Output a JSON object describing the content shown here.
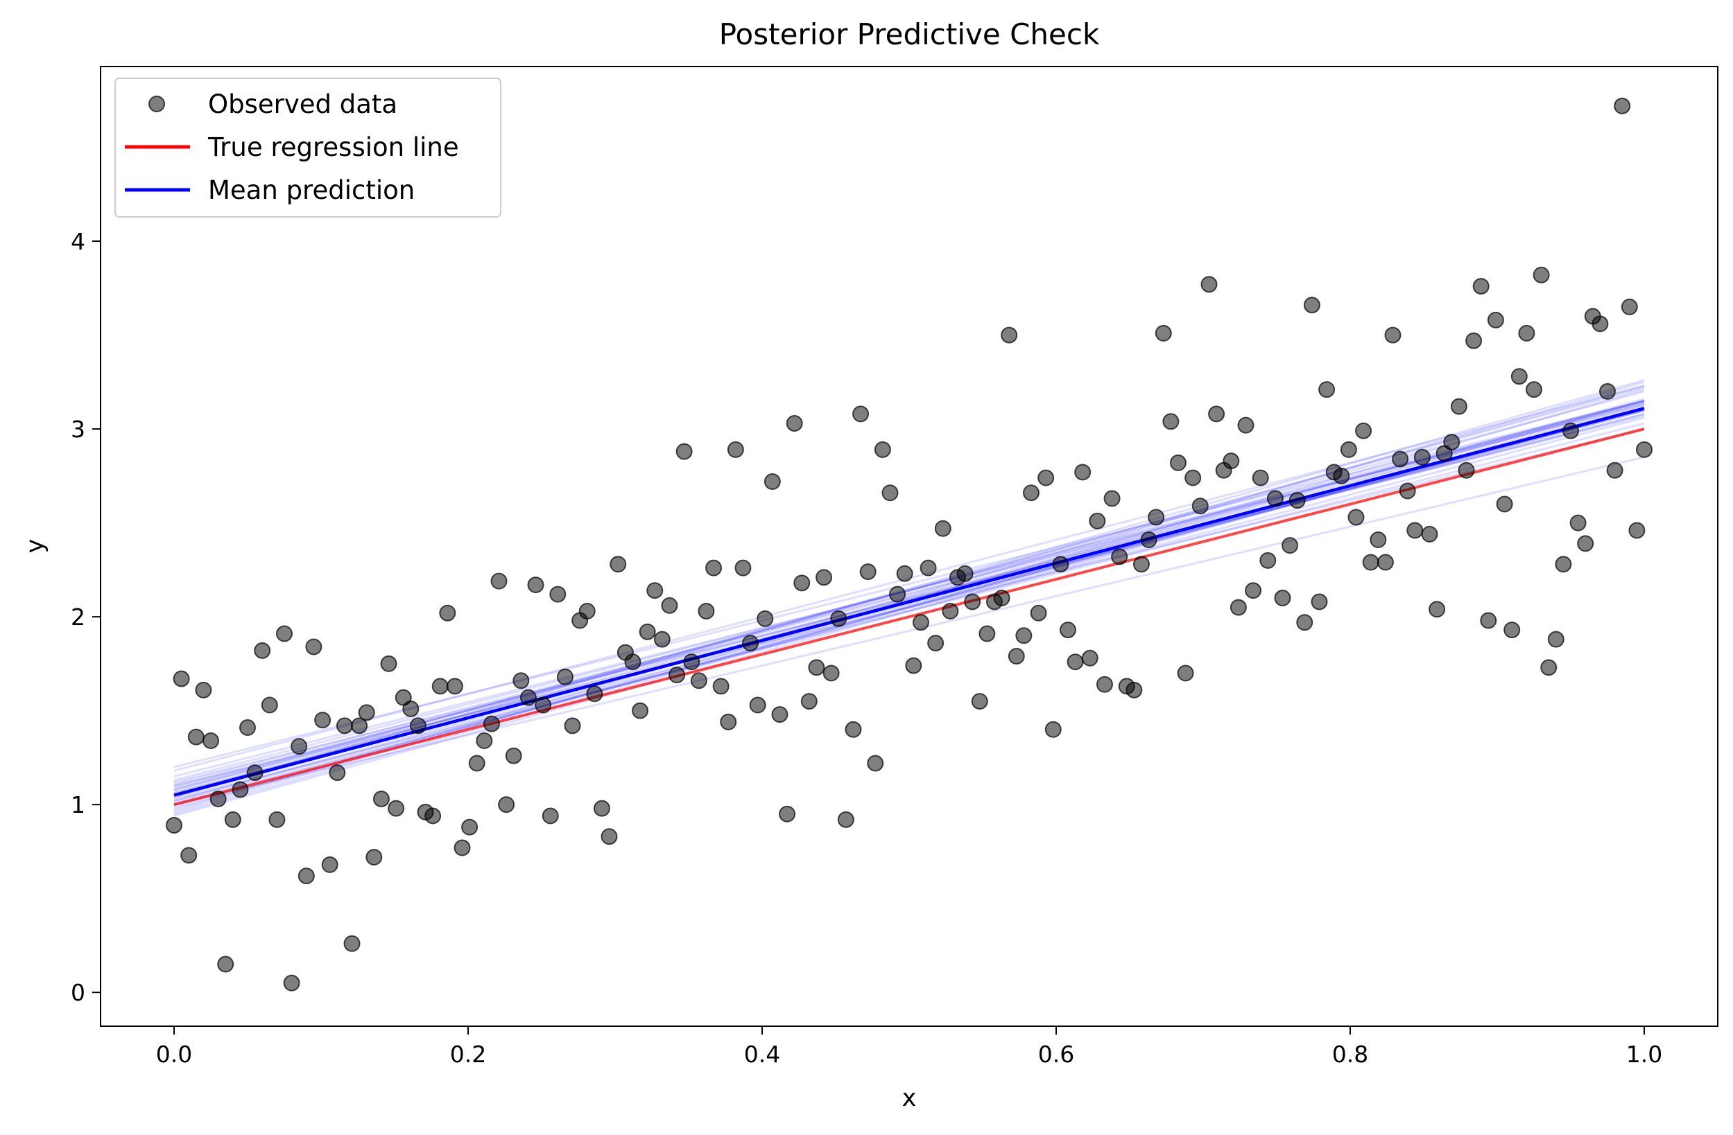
{
  "chart_data": {
    "type": "scatter",
    "title": "Posterior Predictive Check",
    "xlabel": "x",
    "ylabel": "y",
    "xlim": [
      -0.05,
      1.05
    ],
    "ylim": [
      -0.18,
      4.93
    ],
    "xticks": [
      0.0,
      0.2,
      0.4,
      0.6,
      0.8,
      1.0
    ],
    "xtick_labels": [
      "0.0",
      "0.2",
      "0.4",
      "0.6",
      "0.8",
      "1.0"
    ],
    "yticks": [
      0,
      1,
      2,
      3,
      4
    ],
    "ytick_labels": [
      "0",
      "1",
      "2",
      "3",
      "4"
    ],
    "grid": false,
    "legend_position": "upper-left",
    "legend": [
      {
        "label": "Observed data",
        "kind": "marker",
        "color": "#000000"
      },
      {
        "label": "True regression line",
        "kind": "line",
        "color": "#ff0000"
      },
      {
        "label": "Mean prediction",
        "kind": "line",
        "color": "#0000ff"
      }
    ],
    "colors": {
      "observed": "#000000",
      "true_line": "#ff0000",
      "mean_line": "#0000ff",
      "posterior_lines": "#0000ff"
    },
    "true_line": {
      "intercept": 1.0,
      "slope": 2.0
    },
    "mean_prediction": {
      "intercept": 1.05,
      "slope": 2.06
    },
    "posterior_lines": [
      [
        1.0,
        2.1
      ],
      [
        1.05,
        2.05
      ],
      [
        1.1,
        2.0
      ],
      [
        0.95,
        2.2
      ],
      [
        1.08,
        2.12
      ],
      [
        1.02,
        2.08
      ],
      [
        1.12,
        1.95
      ],
      [
        0.98,
        2.15
      ],
      [
        1.06,
        2.02
      ],
      [
        1.04,
        2.1
      ],
      [
        1.15,
        1.98
      ],
      [
        0.96,
        2.25
      ],
      [
        1.09,
        2.06
      ],
      [
        1.03,
        2.0
      ],
      [
        1.07,
        2.15
      ],
      [
        1.01,
        2.05
      ],
      [
        1.13,
        2.02
      ],
      [
        0.99,
        2.12
      ],
      [
        1.05,
        2.18
      ],
      [
        1.1,
        1.9
      ],
      [
        1.2,
        1.95
      ],
      [
        0.97,
        2.28
      ],
      [
        1.04,
        2.22
      ],
      [
        1.0,
        1.85
      ],
      [
        1.18,
        2.05
      ],
      [
        1.06,
        2.09
      ],
      [
        1.02,
        2.14
      ],
      [
        1.11,
        2.03
      ],
      [
        0.94,
        2.18
      ],
      [
        1.08,
        2.0
      ]
    ],
    "observed": [
      [
        0.0,
        0.89
      ],
      [
        0.005,
        1.67
      ],
      [
        0.01,
        0.73
      ],
      [
        0.015,
        1.36
      ],
      [
        0.02,
        1.61
      ],
      [
        0.025,
        1.34
      ],
      [
        0.03,
        1.03
      ],
      [
        0.035,
        0.15
      ],
      [
        0.04,
        0.92
      ],
      [
        0.045,
        1.08
      ],
      [
        0.05,
        1.41
      ],
      [
        0.055,
        1.17
      ],
      [
        0.06,
        1.82
      ],
      [
        0.065,
        1.53
      ],
      [
        0.07,
        0.92
      ],
      [
        0.075,
        1.91
      ],
      [
        0.08,
        0.05
      ],
      [
        0.085,
        1.31
      ],
      [
        0.09,
        0.62
      ],
      [
        0.095,
        1.84
      ],
      [
        0.101,
        1.45
      ],
      [
        0.106,
        0.68
      ],
      [
        0.111,
        1.17
      ],
      [
        0.116,
        1.42
      ],
      [
        0.121,
        0.26
      ],
      [
        0.126,
        1.42
      ],
      [
        0.131,
        1.49
      ],
      [
        0.136,
        0.72
      ],
      [
        0.141,
        1.03
      ],
      [
        0.146,
        1.75
      ],
      [
        0.151,
        0.98
      ],
      [
        0.156,
        1.57
      ],
      [
        0.161,
        1.51
      ],
      [
        0.166,
        1.42
      ],
      [
        0.171,
        0.96
      ],
      [
        0.176,
        0.94
      ],
      [
        0.181,
        1.63
      ],
      [
        0.186,
        2.02
      ],
      [
        0.191,
        1.63
      ],
      [
        0.196,
        0.77
      ],
      [
        0.201,
        0.88
      ],
      [
        0.206,
        1.22
      ],
      [
        0.211,
        1.34
      ],
      [
        0.216,
        1.43
      ],
      [
        0.221,
        2.19
      ],
      [
        0.226,
        1.0
      ],
      [
        0.231,
        1.26
      ],
      [
        0.236,
        1.66
      ],
      [
        0.241,
        1.57
      ],
      [
        0.246,
        2.17
      ],
      [
        0.251,
        1.53
      ],
      [
        0.256,
        0.94
      ],
      [
        0.261,
        2.12
      ],
      [
        0.266,
        1.68
      ],
      [
        0.271,
        1.42
      ],
      [
        0.276,
        1.98
      ],
      [
        0.281,
        2.03
      ],
      [
        0.286,
        1.59
      ],
      [
        0.291,
        0.98
      ],
      [
        0.296,
        0.83
      ],
      [
        0.302,
        2.28
      ],
      [
        0.307,
        1.81
      ],
      [
        0.312,
        1.76
      ],
      [
        0.317,
        1.5
      ],
      [
        0.322,
        1.92
      ],
      [
        0.327,
        2.14
      ],
      [
        0.332,
        1.88
      ],
      [
        0.337,
        2.06
      ],
      [
        0.342,
        1.69
      ],
      [
        0.347,
        2.88
      ],
      [
        0.352,
        1.76
      ],
      [
        0.357,
        1.66
      ],
      [
        0.362,
        2.03
      ],
      [
        0.367,
        2.26
      ],
      [
        0.372,
        1.63
      ],
      [
        0.377,
        1.44
      ],
      [
        0.382,
        2.89
      ],
      [
        0.387,
        2.26
      ],
      [
        0.392,
        1.86
      ],
      [
        0.397,
        1.53
      ],
      [
        0.402,
        1.99
      ],
      [
        0.407,
        2.72
      ],
      [
        0.412,
        1.48
      ],
      [
        0.417,
        0.95
      ],
      [
        0.422,
        3.03
      ],
      [
        0.427,
        2.18
      ],
      [
        0.432,
        1.55
      ],
      [
        0.437,
        1.73
      ],
      [
        0.442,
        2.21
      ],
      [
        0.447,
        1.7
      ],
      [
        0.452,
        1.99
      ],
      [
        0.457,
        0.92
      ],
      [
        0.462,
        1.4
      ],
      [
        0.467,
        3.08
      ],
      [
        0.472,
        2.24
      ],
      [
        0.477,
        1.22
      ],
      [
        0.482,
        2.89
      ],
      [
        0.487,
        2.66
      ],
      [
        0.492,
        2.12
      ],
      [
        0.497,
        2.23
      ],
      [
        0.503,
        1.74
      ],
      [
        0.508,
        1.97
      ],
      [
        0.513,
        2.26
      ],
      [
        0.518,
        1.86
      ],
      [
        0.523,
        2.47
      ],
      [
        0.528,
        2.03
      ],
      [
        0.533,
        2.21
      ],
      [
        0.538,
        2.23
      ],
      [
        0.543,
        2.08
      ],
      [
        0.548,
        1.55
      ],
      [
        0.553,
        1.91
      ],
      [
        0.558,
        2.08
      ],
      [
        0.563,
        2.1
      ],
      [
        0.568,
        3.5
      ],
      [
        0.573,
        1.79
      ],
      [
        0.578,
        1.9
      ],
      [
        0.583,
        2.66
      ],
      [
        0.588,
        2.02
      ],
      [
        0.593,
        2.74
      ],
      [
        0.598,
        1.4
      ],
      [
        0.603,
        2.28
      ],
      [
        0.608,
        1.93
      ],
      [
        0.613,
        1.76
      ],
      [
        0.618,
        2.77
      ],
      [
        0.623,
        1.78
      ],
      [
        0.628,
        2.51
      ],
      [
        0.633,
        1.64
      ],
      [
        0.638,
        2.63
      ],
      [
        0.643,
        2.32
      ],
      [
        0.648,
        1.63
      ],
      [
        0.653,
        1.61
      ],
      [
        0.658,
        2.28
      ],
      [
        0.663,
        2.41
      ],
      [
        0.668,
        2.53
      ],
      [
        0.673,
        3.51
      ],
      [
        0.678,
        3.04
      ],
      [
        0.683,
        2.82
      ],
      [
        0.688,
        1.7
      ],
      [
        0.693,
        2.74
      ],
      [
        0.698,
        2.59
      ],
      [
        0.704,
        3.77
      ],
      [
        0.709,
        3.08
      ],
      [
        0.714,
        2.78
      ],
      [
        0.719,
        2.83
      ],
      [
        0.724,
        2.05
      ],
      [
        0.729,
        3.02
      ],
      [
        0.734,
        2.14
      ],
      [
        0.739,
        2.74
      ],
      [
        0.744,
        2.3
      ],
      [
        0.749,
        2.63
      ],
      [
        0.754,
        2.1
      ],
      [
        0.759,
        2.38
      ],
      [
        0.764,
        2.62
      ],
      [
        0.769,
        1.97
      ],
      [
        0.774,
        3.66
      ],
      [
        0.779,
        2.08
      ],
      [
        0.784,
        3.21
      ],
      [
        0.789,
        2.77
      ],
      [
        0.794,
        2.75
      ],
      [
        0.799,
        2.89
      ],
      [
        0.804,
        2.53
      ],
      [
        0.809,
        2.99
      ],
      [
        0.814,
        2.29
      ],
      [
        0.819,
        2.41
      ],
      [
        0.824,
        2.29
      ],
      [
        0.829,
        3.5
      ],
      [
        0.834,
        2.84
      ],
      [
        0.839,
        2.67
      ],
      [
        0.844,
        2.46
      ],
      [
        0.849,
        2.85
      ],
      [
        0.854,
        2.44
      ],
      [
        0.859,
        2.04
      ],
      [
        0.864,
        2.87
      ],
      [
        0.869,
        2.93
      ],
      [
        0.874,
        3.12
      ],
      [
        0.879,
        2.78
      ],
      [
        0.884,
        3.47
      ],
      [
        0.889,
        3.76
      ],
      [
        0.894,
        1.98
      ],
      [
        0.899,
        3.58
      ],
      [
        0.905,
        2.6
      ],
      [
        0.91,
        1.93
      ],
      [
        0.915,
        3.28
      ],
      [
        0.92,
        3.51
      ],
      [
        0.925,
        3.21
      ],
      [
        0.93,
        3.82
      ],
      [
        0.935,
        1.73
      ],
      [
        0.94,
        1.88
      ],
      [
        0.945,
        2.28
      ],
      [
        0.95,
        2.99
      ],
      [
        0.955,
        2.5
      ],
      [
        0.96,
        2.39
      ],
      [
        0.965,
        3.6
      ],
      [
        0.97,
        3.56
      ],
      [
        0.975,
        3.2
      ],
      [
        0.98,
        2.78
      ],
      [
        0.985,
        4.72
      ],
      [
        0.99,
        3.65
      ],
      [
        0.995,
        2.46
      ],
      [
        1.0,
        2.89
      ]
    ]
  }
}
